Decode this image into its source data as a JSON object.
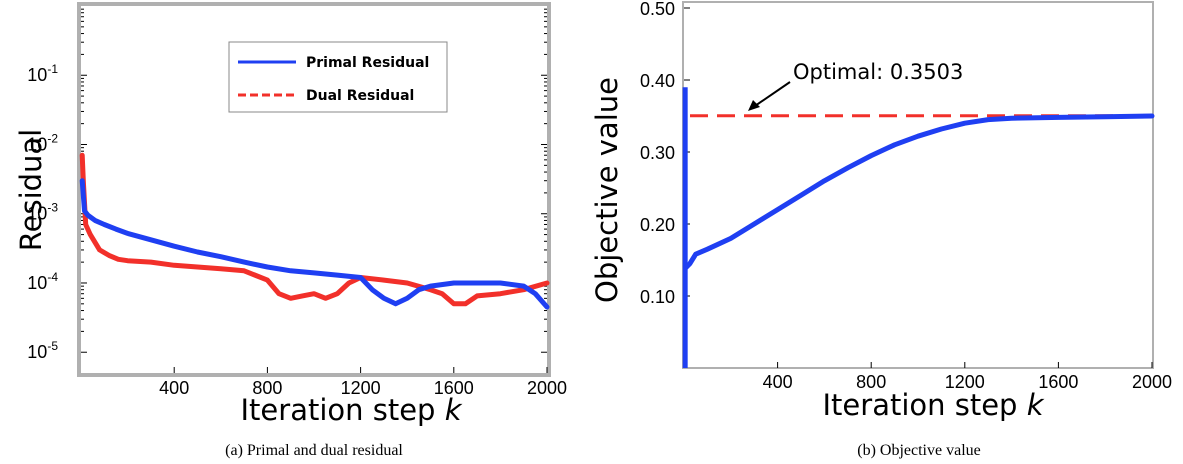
{
  "figure": {
    "caption_a": "(a) Primal and dual residual",
    "caption_b": "(b) Objective value"
  },
  "chart_data": [
    {
      "type": "line",
      "xlabel": "Iteration step",
      "xlabel_var": "k",
      "ylabel": "Residual",
      "yscale": "log",
      "xlim": [
        0,
        2000
      ],
      "ylim_exp": [
        -5.3,
        0
      ],
      "xticks": [
        400,
        800,
        1200,
        1600,
        2000
      ],
      "yticks": [
        {
          "value": 0.1,
          "base": "10",
          "exp": "-1"
        },
        {
          "value": 0.01,
          "base": "10",
          "exp": "-2"
        },
        {
          "value": 0.001,
          "base": "10",
          "exp": "-3"
        },
        {
          "value": 0.0001,
          "base": "10",
          "exp": "-4"
        },
        {
          "value": 1e-05,
          "base": "10",
          "exp": "-5"
        }
      ],
      "legend_position": "top-right",
      "series": [
        {
          "name": "Primal Residual",
          "color": "#1f3ff2",
          "style": "solid",
          "x": [
            5,
            15,
            30,
            60,
            100,
            150,
            200,
            300,
            400,
            500,
            600,
            700,
            800,
            900,
            1000,
            1100,
            1200,
            1250,
            1300,
            1350,
            1400,
            1450,
            1500,
            1600,
            1700,
            1800,
            1900,
            1950,
            2000
          ],
          "y": [
            0.003,
            0.0011,
            0.00095,
            0.0008,
            0.0007,
            0.0006,
            0.00052,
            0.00042,
            0.00034,
            0.00028,
            0.00024,
            0.0002,
            0.00017,
            0.00015,
            0.00014,
            0.00013,
            0.00012,
            8e-05,
            6e-05,
            5e-05,
            6e-05,
            8e-05,
            9e-05,
            0.0001,
            0.0001,
            0.0001,
            9e-05,
            7e-05,
            4.5e-05
          ]
        },
        {
          "name": "Dual Residual",
          "color": "#f2302a",
          "style": "dashed",
          "x": [
            5,
            10,
            20,
            40,
            80,
            120,
            160,
            200,
            300,
            400,
            500,
            600,
            700,
            800,
            850,
            900,
            950,
            1000,
            1050,
            1100,
            1150,
            1200,
            1300,
            1400,
            1500,
            1550,
            1600,
            1650,
            1700,
            1800,
            1900,
            2000
          ],
          "y": [
            0.007,
            0.003,
            0.0007,
            0.0005,
            0.0003,
            0.00025,
            0.00022,
            0.00021,
            0.0002,
            0.00018,
            0.00017,
            0.00016,
            0.00015,
            0.00011,
            7e-05,
            6e-05,
            6.5e-05,
            7e-05,
            6e-05,
            7e-05,
            0.0001,
            0.00012,
            0.00011,
            0.0001,
            8e-05,
            7e-05,
            5e-05,
            5e-05,
            6.5e-05,
            7e-05,
            8e-05,
            0.0001
          ]
        }
      ]
    },
    {
      "type": "line",
      "xlabel": "Iteration step",
      "xlabel_var": "k",
      "ylabel": "Objective value",
      "xlim": [
        0,
        2000
      ],
      "ylim": [
        0.0,
        0.5
      ],
      "xticks": [
        400,
        800,
        1200,
        1600,
        2000
      ],
      "yticks": [
        "0.10",
        "0.20",
        "0.30",
        "0.40",
        "0.50"
      ],
      "annotation": "Optimal: 0.3503",
      "optimal": 0.3503,
      "series": [
        {
          "color": "#1f3ff2",
          "style": "solid",
          "x": [
            10,
            25,
            50,
            100,
            200,
            300,
            400,
            500,
            600,
            700,
            800,
            900,
            1000,
            1100,
            1200,
            1300,
            1400,
            1600,
            1800,
            2000
          ],
          "y": [
            0.14,
            0.145,
            0.158,
            0.165,
            0.18,
            0.2,
            0.22,
            0.24,
            0.26,
            0.278,
            0.295,
            0.31,
            0.322,
            0.332,
            0.34,
            0.345,
            0.347,
            0.348,
            0.349,
            0.35
          ]
        },
        {
          "color": "#f2302a",
          "style": "dashed",
          "y": 0.3503
        }
      ]
    }
  ]
}
